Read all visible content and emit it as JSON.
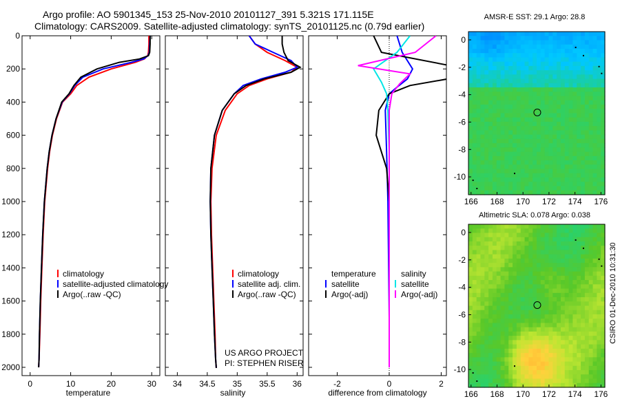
{
  "header": {
    "line1": "Argo profile: AO 5901345_153 25-Nov-2010 20101127_391 5.321S 171.115E",
    "line2": "Climatology: CARS2009. Satellite-adjusted climatology: synTS_20101125.nc (0.79d earlier)"
  },
  "side_label": "CSIRO 01-Dec-2010 10:31:30",
  "credits": {
    "project": "US ARGO PROJECT",
    "pi": "PI: STEPHEN RISER"
  },
  "colors": {
    "climatology": "#ff0000",
    "satellite": "#0000ff",
    "argo": "#000000",
    "sal_satellite": "#00e5e5",
    "sal_argo": "#ff00ff"
  },
  "chart_data": [
    {
      "type": "line",
      "id": "temperature",
      "xlabel": "temperature",
      "xlim": [
        -2,
        32
      ],
      "xticks": [
        0,
        10,
        20,
        30
      ],
      "ylim": [
        2050,
        0
      ],
      "yticks": [
        0,
        200,
        400,
        600,
        800,
        1000,
        1200,
        1400,
        1600,
        1800,
        2000
      ],
      "legend": [
        "climatology",
        "satellite-adjusted climatology",
        "Argo(..raw -QC)"
      ],
      "series": [
        {
          "name": "climatology",
          "color": "#ff0000",
          "x": [
            29.3,
            29.3,
            29.2,
            29.0,
            28.2,
            26.0,
            20.0,
            14.5,
            11.5,
            10.0,
            8.0,
            6.5,
            5.5,
            4.8,
            4.3,
            3.6,
            3.2,
            2.9,
            2.6,
            2.4,
            2.2,
            2.1
          ],
          "y": [
            0,
            50,
            100,
            120,
            140,
            160,
            200,
            250,
            300,
            350,
            400,
            500,
            600,
            700,
            800,
            1000,
            1200,
            1400,
            1600,
            1800,
            1950,
            2000
          ]
        },
        {
          "name": "satellite",
          "color": "#0000ff",
          "x": [
            29.6,
            29.5,
            29.4,
            29.1,
            28.0,
            25.0,
            18.0,
            13.0,
            11.0,
            9.7,
            7.9,
            6.4,
            5.4,
            4.7,
            4.2,
            3.5,
            3.1,
            2.8,
            2.5,
            2.3,
            2.2,
            2.1
          ],
          "y": [
            0,
            50,
            100,
            120,
            140,
            160,
            200,
            250,
            300,
            350,
            400,
            500,
            600,
            700,
            800,
            1000,
            1200,
            1400,
            1600,
            1800,
            1950,
            2000
          ]
        },
        {
          "name": "Argo",
          "color": "#000000",
          "x": [
            29.6,
            29.6,
            29.5,
            29.2,
            27.0,
            22.0,
            16.5,
            12.5,
            10.8,
            9.6,
            7.8,
            6.4,
            5.4,
            4.7,
            4.2,
            3.5,
            3.1,
            2.8,
            2.5,
            2.3,
            2.2,
            2.1
          ],
          "y": [
            0,
            50,
            100,
            120,
            140,
            160,
            200,
            250,
            300,
            350,
            400,
            500,
            600,
            700,
            800,
            1000,
            1200,
            1400,
            1600,
            1800,
            1950,
            2000
          ]
        }
      ]
    },
    {
      "type": "line",
      "id": "salinity",
      "xlabel": "salinity",
      "xlim": [
        33.8,
        36.1
      ],
      "xticks": [
        34,
        34.5,
        35,
        35.5,
        36
      ],
      "ylim": [
        2050,
        0
      ],
      "yticks": [
        0,
        200,
        400,
        600,
        800,
        1000,
        1200,
        1400,
        1600,
        1800,
        2000
      ],
      "legend": [
        "climatology",
        "satellite adj. clim.",
        "Argo(..raw -QC)"
      ],
      "series": [
        {
          "name": "climatology",
          "color": "#ff0000",
          "x": [
            35.2,
            35.3,
            35.5,
            35.8,
            36.0,
            35.9,
            35.5,
            35.2,
            35.0,
            34.8,
            34.65,
            34.58,
            34.56,
            34.57,
            34.59,
            34.61,
            34.63,
            34.64,
            34.65,
            34.66
          ],
          "y": [
            0,
            50,
            100,
            150,
            190,
            220,
            260,
            300,
            350,
            450,
            600,
            800,
            1000,
            1200,
            1400,
            1600,
            1800,
            1950,
            2000,
            2000
          ]
        },
        {
          "name": "satellite",
          "color": "#0000ff",
          "x": [
            35.2,
            35.3,
            35.6,
            35.9,
            36.0,
            35.8,
            35.4,
            35.1,
            34.95,
            34.75,
            34.62,
            34.56,
            34.55,
            34.56,
            34.58,
            34.6,
            34.62,
            34.64,
            34.65,
            34.66
          ],
          "y": [
            0,
            50,
            100,
            150,
            190,
            220,
            260,
            300,
            350,
            450,
            600,
            800,
            1000,
            1200,
            1400,
            1600,
            1800,
            1950,
            2000,
            2000
          ]
        },
        {
          "name": "Argo",
          "color": "#000000",
          "x": [
            35.75,
            35.75,
            35.78,
            35.85,
            36.05,
            35.9,
            35.45,
            35.15,
            34.95,
            34.75,
            34.62,
            34.56,
            34.55,
            34.56,
            34.58,
            34.6,
            34.62,
            34.64,
            34.65,
            34.66
          ],
          "y": [
            0,
            50,
            100,
            150,
            190,
            220,
            260,
            300,
            350,
            450,
            600,
            800,
            1000,
            1200,
            1400,
            1600,
            1800,
            1950,
            2000,
            2000
          ]
        }
      ]
    },
    {
      "type": "line",
      "id": "difference",
      "xlabel": "difference from climatology",
      "xlim": [
        -3.1,
        2.2
      ],
      "xticks": [
        -2,
        0,
        2
      ],
      "ylim": [
        2050,
        0
      ],
      "yticks": [
        0,
        200,
        400,
        600,
        800,
        1000,
        1200,
        1400,
        1600,
        1800,
        2000
      ],
      "legend_groups": [
        {
          "title": "temperature",
          "items": [
            "satellite",
            "Argo(-adj)"
          ]
        },
        {
          "title": "salinity",
          "items": [
            "satellite",
            "Argo(-adj)"
          ]
        }
      ],
      "series": [
        {
          "name": "temperature satellite",
          "color": "#0000ff",
          "x": [
            0.3,
            0.5,
            0.9,
            0.7,
            0.3,
            0.0,
            -0.15,
            -0.1,
            -0.05,
            -0.02,
            0.0,
            0.0,
            0.0
          ],
          "y": [
            0,
            100,
            200,
            260,
            310,
            350,
            450,
            700,
            1000,
            1400,
            1700,
            1900,
            2000
          ]
        },
        {
          "name": "temperature Argo",
          "color": "#000000",
          "x": [
            -0.6,
            -0.3,
            3.0,
            3.0,
            0.8,
            0.0,
            -0.4,
            -0.5,
            -0.1,
            0.0,
            0.0,
            0.0,
            0.0
          ],
          "y": [
            0,
            100,
            200,
            240,
            300,
            350,
            450,
            600,
            800,
            1000,
            1400,
            1800,
            2000
          ]
        },
        {
          "name": "salinity satellite",
          "color": "#00e5e5",
          "x": [
            0.8,
            0.3,
            -0.6,
            -0.3,
            -0.1,
            -0.05,
            0.0,
            0.0,
            0.0,
            0.0
          ],
          "y": [
            0,
            100,
            200,
            280,
            350,
            450,
            700,
            1000,
            1500,
            2000
          ]
        },
        {
          "name": "salinity Argo",
          "color": "#ff00ff",
          "x": [
            1.8,
            1.0,
            -1.2,
            0.8,
            0.4,
            0.1,
            0.0,
            0.0,
            0.0,
            0.0
          ],
          "y": [
            0,
            100,
            180,
            230,
            290,
            350,
            450,
            700,
            1200,
            2000
          ]
        }
      ]
    },
    {
      "type": "heatmap",
      "id": "sst_map",
      "title": "AMSR-E SST: 29.1 Argo: 28.8",
      "sst_value": 29.1,
      "argo_value": 28.8,
      "xlim": [
        165.8,
        176.3
      ],
      "xticks": [
        166,
        168,
        170,
        172,
        174,
        176
      ],
      "ylim": [
        -11.3,
        0.6
      ],
      "yticks": [
        0,
        -2,
        -4,
        -6,
        -8,
        -10
      ],
      "marker": {
        "lon": 171.1,
        "lat": -5.3
      }
    },
    {
      "type": "heatmap",
      "id": "sla_map",
      "title": "Altimetric SLA: 0.078 Argo: 0.038",
      "sla_value": 0.078,
      "argo_value": 0.038,
      "xlim": [
        165.8,
        176.3
      ],
      "xticks": [
        166,
        168,
        170,
        172,
        174,
        176
      ],
      "ylim": [
        -11.3,
        0.6
      ],
      "yticks": [
        0,
        -2,
        -4,
        -6,
        -8,
        -10
      ],
      "marker": {
        "lon": 171.1,
        "lat": -5.3
      }
    }
  ]
}
